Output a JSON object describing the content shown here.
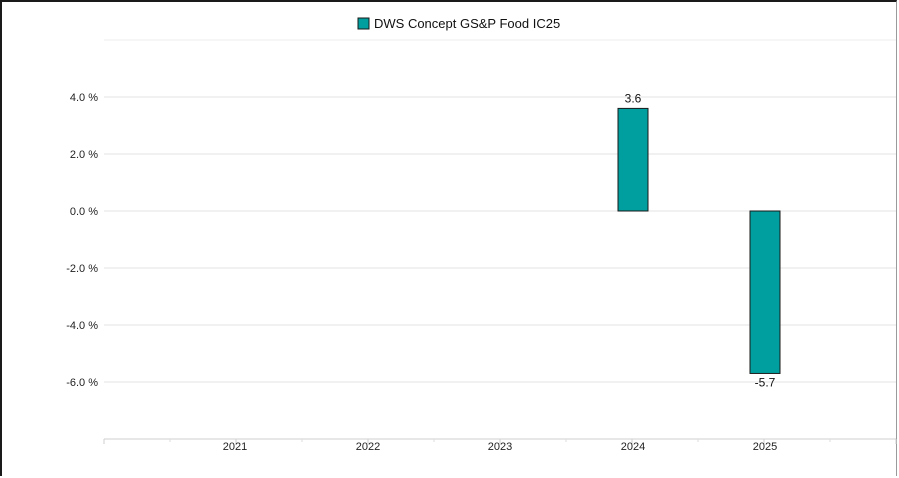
{
  "chart_data": {
    "type": "bar",
    "title": "",
    "xlabel": "",
    "ylabel": "",
    "categories": [
      "2021",
      "2022",
      "2023",
      "2024",
      "2025"
    ],
    "series": [
      {
        "name": "DWS Concept GS&P Food IC25",
        "values": [
          null,
          null,
          null,
          3.6,
          -5.7
        ],
        "color": "#009f9f"
      }
    ],
    "data_labels": [
      "",
      "",
      "",
      "3.6",
      "-5.7"
    ],
    "yticks": [
      4,
      2,
      0,
      -2,
      -4,
      -6
    ],
    "ytick_labels": [
      "4.0 %",
      "2.0 %",
      "0.0 %",
      "-2.0 %",
      "-4.0 %",
      "-6.0 %"
    ],
    "ylim": [
      -8,
      6
    ],
    "grid": true,
    "legend": "top-center"
  }
}
